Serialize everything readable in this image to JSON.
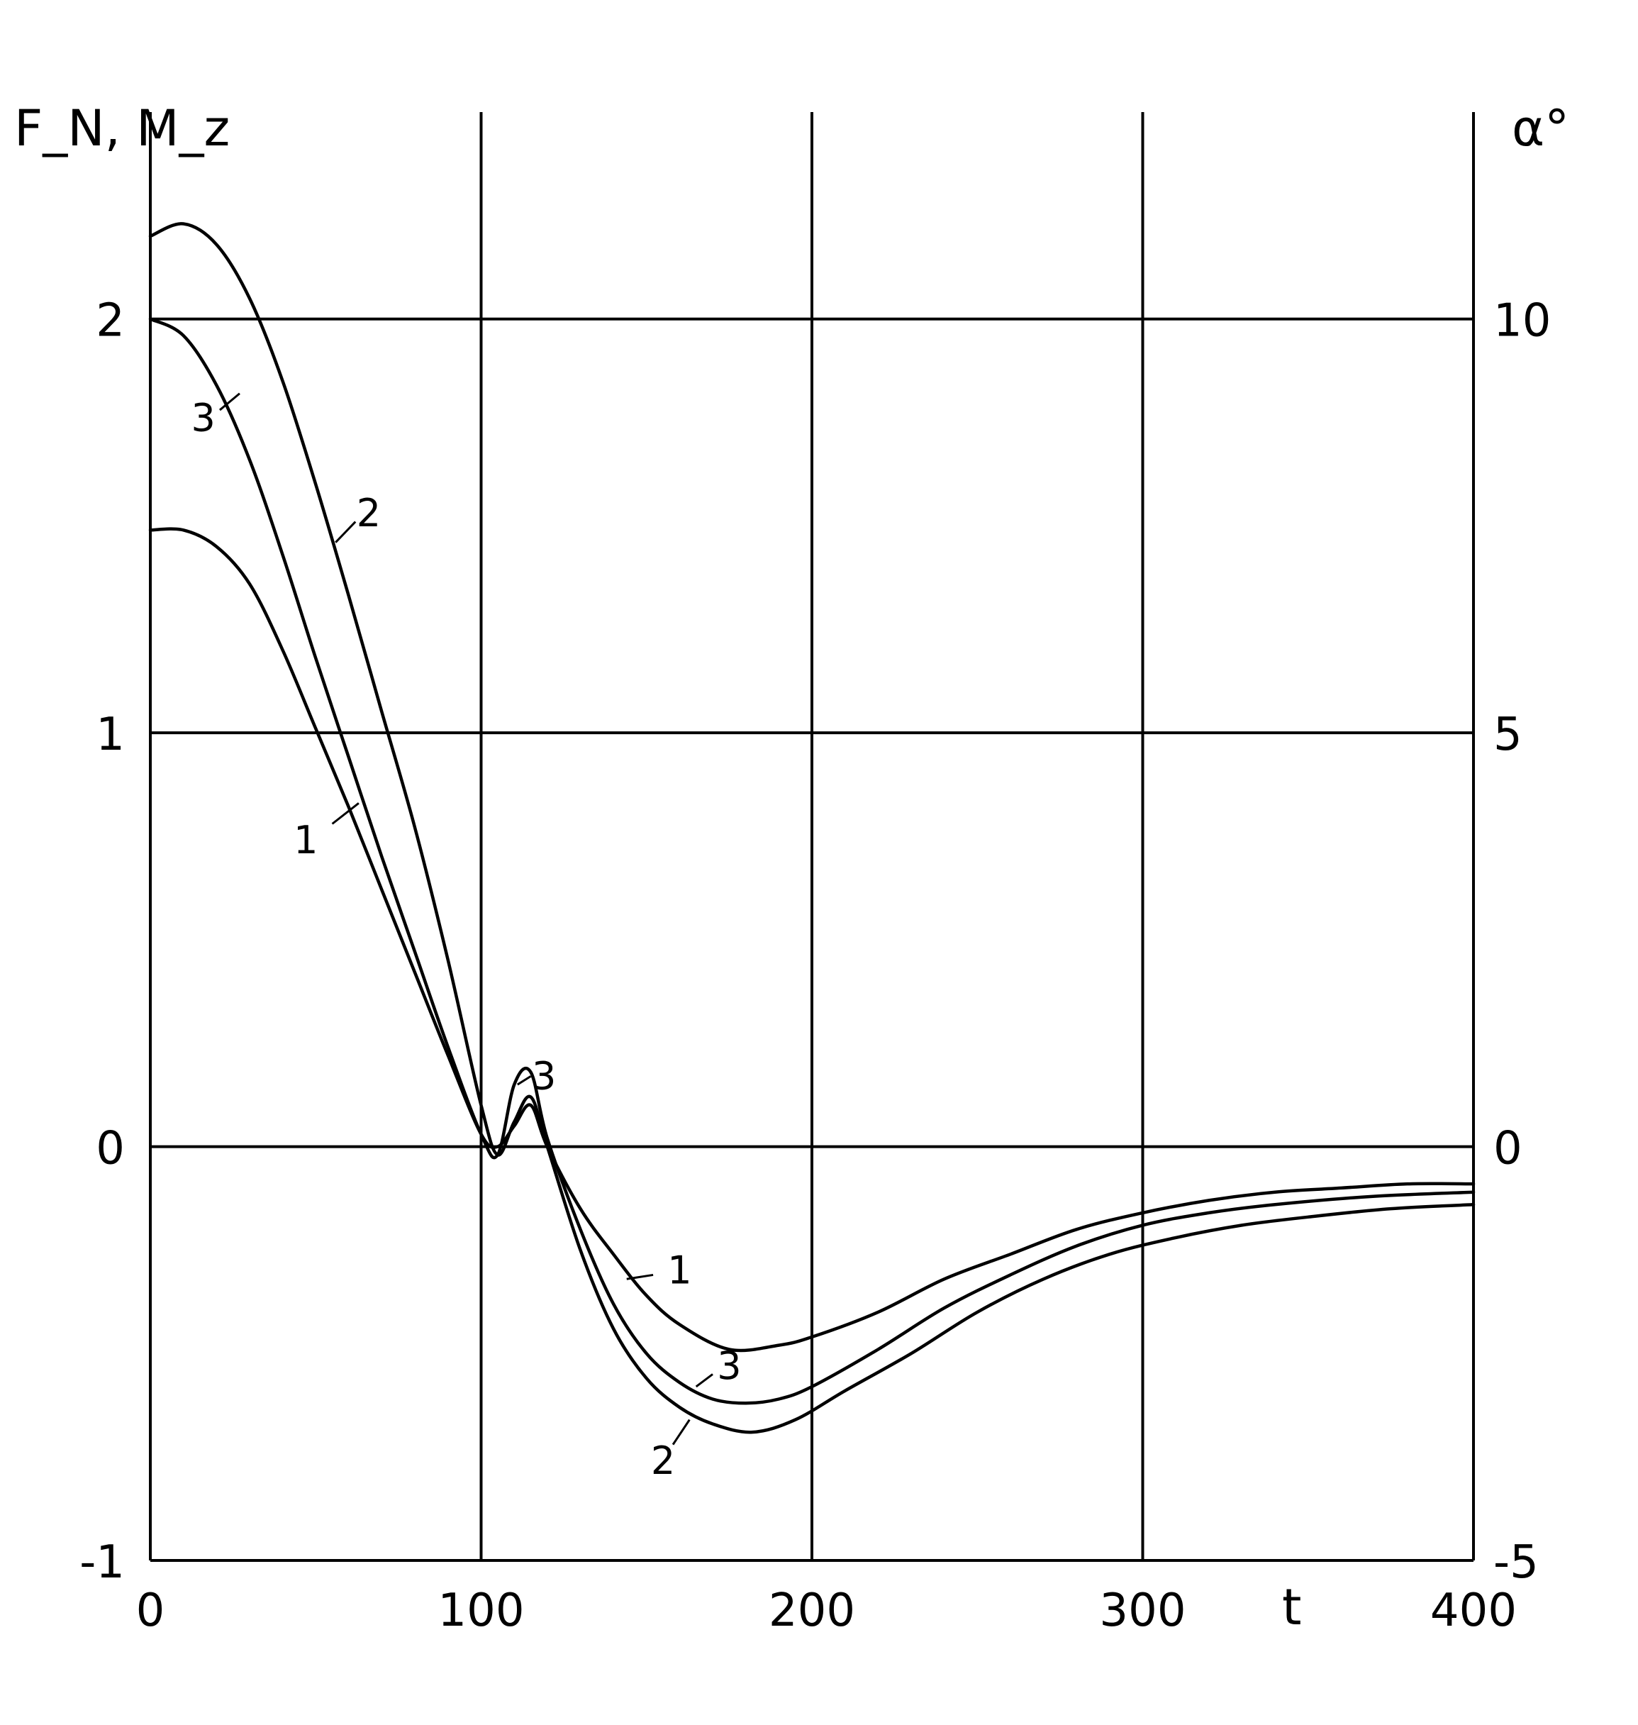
{
  "chart_data": {
    "type": "line",
    "x_label": "t",
    "y_label_left": "F_N, M_z",
    "y_label_right": "α°",
    "xlim": [
      0,
      400
    ],
    "ylim_left": [
      -1,
      2.5
    ],
    "ylim_right": [
      -5,
      12.5
    ],
    "x_ticks": [
      "0",
      "100",
      "200",
      "300",
      "400"
    ],
    "y_ticks_left": [
      "-1",
      "0",
      "1",
      "2"
    ],
    "y_ticks_right": [
      "-5",
      "0",
      "5",
      "10"
    ],
    "grid": true,
    "series": [
      {
        "name": "1",
        "x": [
          0,
          10,
          20,
          30,
          40,
          50,
          60,
          70,
          80,
          90,
          100,
          105,
          110,
          115,
          120,
          130,
          140,
          150,
          160,
          175,
          190,
          200,
          220,
          240,
          260,
          280,
          300,
          320,
          340,
          360,
          380,
          400
        ],
        "y": [
          1.49,
          1.49,
          1.45,
          1.36,
          1.2,
          1.01,
          0.82,
          0.62,
          0.42,
          0.22,
          0.03,
          0.0,
          0.05,
          0.1,
          0.0,
          -0.15,
          -0.26,
          -0.36,
          -0.43,
          -0.49,
          -0.48,
          -0.46,
          -0.4,
          -0.32,
          -0.26,
          -0.2,
          -0.16,
          -0.13,
          -0.11,
          -0.1,
          -0.09,
          -0.09
        ]
      },
      {
        "name": "2",
        "x": [
          0,
          10,
          20,
          30,
          40,
          50,
          60,
          70,
          80,
          90,
          100,
          105,
          110,
          115,
          120,
          130,
          140,
          150,
          160,
          170,
          182,
          195,
          210,
          230,
          250,
          270,
          290,
          310,
          330,
          350,
          375,
          400
        ],
        "y": [
          2.2,
          2.23,
          2.18,
          2.05,
          1.85,
          1.6,
          1.33,
          1.05,
          0.77,
          0.45,
          0.1,
          -0.02,
          0.06,
          0.12,
          0.0,
          -0.25,
          -0.44,
          -0.56,
          -0.63,
          -0.67,
          -0.69,
          -0.66,
          -0.59,
          -0.5,
          -0.4,
          -0.32,
          -0.26,
          -0.22,
          -0.19,
          -0.17,
          -0.15,
          -0.14
        ]
      },
      {
        "name": "3",
        "x": [
          0,
          10,
          20,
          30,
          40,
          50,
          60,
          70,
          80,
          90,
          100,
          105,
          110,
          115,
          120,
          130,
          140,
          150,
          160,
          170,
          180,
          190,
          200,
          220,
          240,
          260,
          280,
          300,
          320,
          340,
          370,
          400
        ],
        "y": [
          2.0,
          1.96,
          1.84,
          1.66,
          1.43,
          1.18,
          0.94,
          0.7,
          0.47,
          0.24,
          0.03,
          -0.02,
          0.15,
          0.18,
          0.02,
          -0.2,
          -0.38,
          -0.5,
          -0.57,
          -0.61,
          -0.62,
          -0.61,
          -0.58,
          -0.49,
          -0.39,
          -0.31,
          -0.24,
          -0.19,
          -0.16,
          -0.14,
          -0.12,
          -0.11
        ]
      }
    ]
  }
}
